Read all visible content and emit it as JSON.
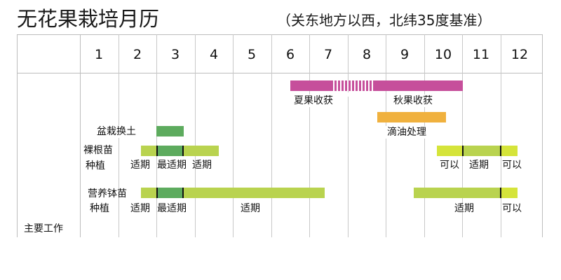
{
  "title": "无花果栽培月历",
  "subtitle": "（关东地方以西，北纬35度基准）",
  "months": [
    "1",
    "2",
    "3",
    "4",
    "5",
    "6",
    "7",
    "8",
    "9",
    "10",
    "11",
    "12"
  ],
  "category": "主要工作",
  "colors": {
    "harvest": "#c64f9b",
    "oil_treatment": "#f0b13e",
    "repot": "#5dab5e",
    "suitable": "#b9d34f",
    "best": "#5dab5e",
    "possible": "#d5e43a",
    "grid": "#bdbdbd"
  },
  "harvest": {
    "summer_label": "夏果收获",
    "autumn_label": "秋果收获"
  },
  "oil_treatment": {
    "label": "滴油处理"
  },
  "repot": {
    "label": "盆栽换土"
  },
  "bare_root": {
    "label_line1": "裸根苗",
    "label_line2": "种植",
    "segments": [
      "适期",
      "最适期",
      "适期",
      "可以",
      "适期",
      "可以"
    ]
  },
  "potted": {
    "label_line1": "营养钵苗",
    "label_line2": "种植",
    "segments": [
      "适期",
      "最适期",
      "适期",
      "适期",
      "可以"
    ]
  }
}
